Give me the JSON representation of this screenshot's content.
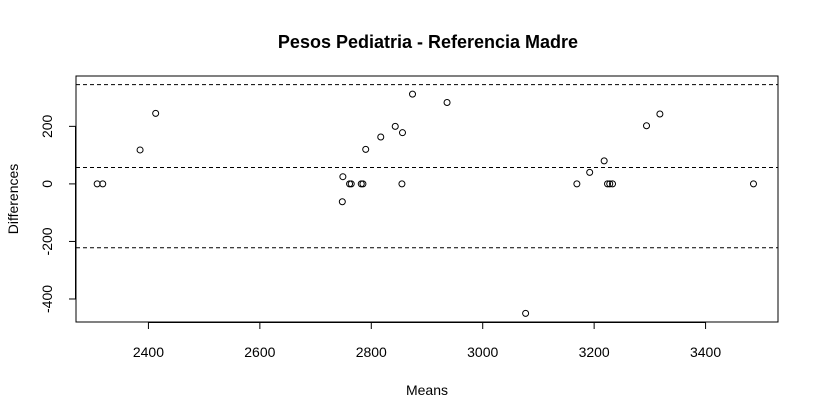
{
  "chart_data": {
    "type": "scatter",
    "title": "Pesos Pediatria - Referencia Madre",
    "xlabel": "Means",
    "ylabel": "Differences",
    "xlim": [
      2270,
      3530
    ],
    "ylim": [
      -480,
      375
    ],
    "x_ticks": [
      2400,
      2600,
      2800,
      3000,
      3200,
      3400
    ],
    "y_ticks": [
      -400,
      -200,
      0,
      200
    ],
    "reference_lines": [
      {
        "y": 345,
        "style": "dashed"
      },
      {
        "y": 57,
        "style": "dashed"
      },
      {
        "y": -222,
        "style": "dashed"
      }
    ],
    "points": [
      {
        "x": 2308,
        "y": 0
      },
      {
        "x": 2318,
        "y": 0
      },
      {
        "x": 2385,
        "y": 118
      },
      {
        "x": 2413,
        "y": 245
      },
      {
        "x": 2748,
        "y": -62
      },
      {
        "x": 2749,
        "y": 25
      },
      {
        "x": 2761,
        "y": 0
      },
      {
        "x": 2764,
        "y": 0
      },
      {
        "x": 2782,
        "y": 0
      },
      {
        "x": 2785,
        "y": 0
      },
      {
        "x": 2790,
        "y": 120
      },
      {
        "x": 2817,
        "y": 163
      },
      {
        "x": 2843,
        "y": 200
      },
      {
        "x": 2855,
        "y": 0
      },
      {
        "x": 2856,
        "y": 178
      },
      {
        "x": 2874,
        "y": 312
      },
      {
        "x": 2936,
        "y": 283
      },
      {
        "x": 3077,
        "y": -450
      },
      {
        "x": 3169,
        "y": 0
      },
      {
        "x": 3192,
        "y": 40
      },
      {
        "x": 3218,
        "y": 80
      },
      {
        "x": 3224,
        "y": 0
      },
      {
        "x": 3228,
        "y": 0
      },
      {
        "x": 3233,
        "y": 0
      },
      {
        "x": 3294,
        "y": 202
      },
      {
        "x": 3318,
        "y": 243
      },
      {
        "x": 3486,
        "y": 0
      }
    ]
  }
}
